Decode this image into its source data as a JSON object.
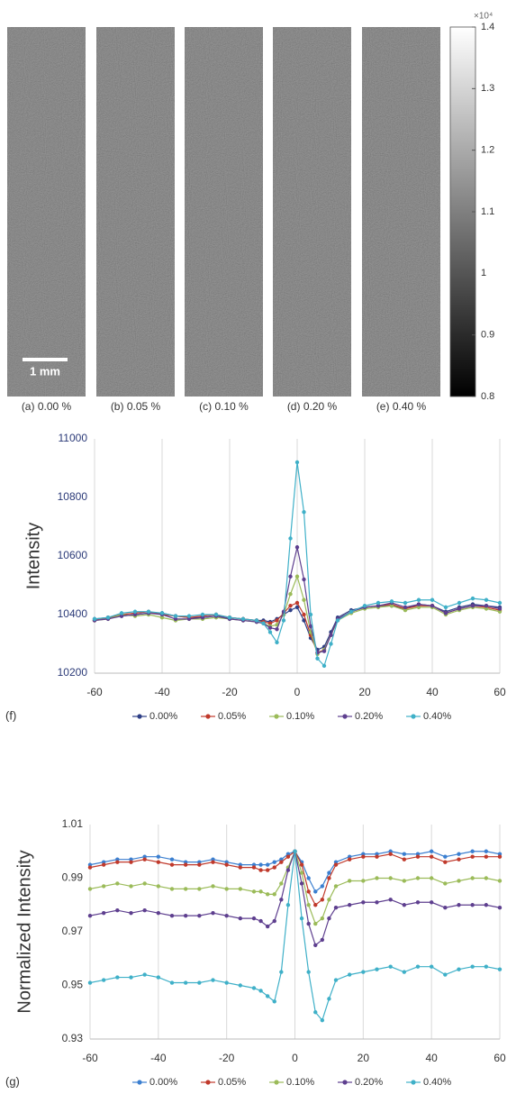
{
  "chart_data": [
    {
      "type": "image",
      "panels": [
        "(a) 0.00 %",
        "(b) 0.05 %",
        "(c) 0.10 %",
        "(d) 0.20 %",
        "(e) 0.40 %"
      ],
      "scale_bar": "1 mm",
      "colorbar_label": "×10⁴",
      "colormap": "gray",
      "clim": [
        0.8,
        1.4
      ],
      "cticks": [
        0.8,
        0.9,
        1,
        1.1,
        1.2,
        1.3,
        1.4
      ]
    },
    {
      "type": "line",
      "label": "(f)",
      "ylabel": "Intensity",
      "grid": "x",
      "x": [
        -60,
        -56,
        -52,
        -48,
        -44,
        -40,
        -36,
        -32,
        -28,
        -24,
        -20,
        -16,
        -12,
        -10,
        -8,
        -6,
        -4,
        -2,
        0,
        2,
        4,
        6,
        8,
        10,
        12,
        16,
        20,
        24,
        28,
        32,
        36,
        40,
        44,
        48,
        52,
        56,
        60
      ],
      "xlim": [
        -60,
        60
      ],
      "xticks": [
        -60,
        -40,
        -20,
        0,
        20,
        40,
        60
      ],
      "ylim": [
        10200,
        11000
      ],
      "yticks": [
        10200,
        10400,
        10600,
        10800,
        11000
      ],
      "series": [
        {
          "name": "0.00%",
          "color": "#2e3f86",
          "values": [
            10385,
            10390,
            10395,
            10400,
            10405,
            10405,
            10395,
            10390,
            10390,
            10395,
            10390,
            10385,
            10380,
            10380,
            10375,
            10385,
            10400,
            10415,
            10425,
            10380,
            10320,
            10280,
            10290,
            10340,
            10390,
            10415,
            10425,
            10430,
            10430,
            10420,
            10435,
            10430,
            10410,
            10425,
            10435,
            10430,
            10425
          ]
        },
        {
          "name": "0.05%",
          "color": "#c0392b",
          "values": [
            10380,
            10390,
            10400,
            10405,
            10410,
            10400,
            10395,
            10390,
            10395,
            10400,
            10390,
            10385,
            10380,
            10375,
            10370,
            10380,
            10405,
            10430,
            10440,
            10400,
            10330,
            10270,
            10280,
            10330,
            10385,
            10410,
            10425,
            10430,
            10435,
            10420,
            10430,
            10430,
            10405,
            10420,
            10430,
            10425,
            10415
          ]
        },
        {
          "name": "0.10%",
          "color": "#9bbb59",
          "values": [
            10380,
            10385,
            10400,
            10395,
            10400,
            10390,
            10380,
            10385,
            10385,
            10390,
            10385,
            10380,
            10375,
            10370,
            10360,
            10365,
            10400,
            10470,
            10530,
            10450,
            10340,
            10265,
            10280,
            10330,
            10380,
            10405,
            10420,
            10425,
            10430,
            10415,
            10425,
            10425,
            10400,
            10415,
            10425,
            10420,
            10410
          ]
        },
        {
          "name": "0.20%",
          "color": "#5e3f8f",
          "values": [
            10380,
            10385,
            10395,
            10400,
            10405,
            10400,
            10385,
            10385,
            10390,
            10395,
            10385,
            10380,
            10375,
            10370,
            10355,
            10350,
            10410,
            10530,
            10630,
            10520,
            10360,
            10270,
            10275,
            10330,
            10385,
            10410,
            10425,
            10430,
            10440,
            10425,
            10435,
            10430,
            10405,
            10420,
            10430,
            10430,
            10420
          ]
        },
        {
          "name": "0.40%",
          "color": "#3fb0c8",
          "values": [
            10385,
            10390,
            10405,
            10410,
            10410,
            10405,
            10395,
            10395,
            10400,
            10400,
            10390,
            10385,
            10380,
            10370,
            10340,
            10305,
            10380,
            10660,
            10920,
            10750,
            10400,
            10250,
            10225,
            10300,
            10380,
            10410,
            10430,
            10440,
            10445,
            10440,
            10450,
            10450,
            10425,
            10440,
            10455,
            10450,
            10440
          ]
        }
      ]
    },
    {
      "type": "line",
      "label": "(g)",
      "ylabel": "Normalized Intensity",
      "grid": "x",
      "x": [
        -60,
        -56,
        -52,
        -48,
        -44,
        -40,
        -36,
        -32,
        -28,
        -24,
        -20,
        -16,
        -12,
        -10,
        -8,
        -6,
        -4,
        -2,
        0,
        2,
        4,
        6,
        8,
        10,
        12,
        16,
        20,
        24,
        28,
        32,
        36,
        40,
        44,
        48,
        52,
        56,
        60
      ],
      "xlim": [
        -60,
        60
      ],
      "xticks": [
        -60,
        -40,
        -20,
        0,
        20,
        40,
        60
      ],
      "ylim": [
        0.93,
        1.01
      ],
      "yticks": [
        0.93,
        0.95,
        0.97,
        0.99,
        1.01
      ],
      "series": [
        {
          "name": "0.00%",
          "color": "#3b7fd0",
          "values": [
            0.995,
            0.996,
            0.997,
            0.997,
            0.998,
            0.998,
            0.997,
            0.996,
            0.996,
            0.997,
            0.996,
            0.995,
            0.995,
            0.995,
            0.995,
            0.996,
            0.997,
            0.999,
            1.0,
            0.996,
            0.99,
            0.985,
            0.987,
            0.992,
            0.996,
            0.998,
            0.999,
            0.999,
            1.0,
            0.999,
            0.999,
            1.0,
            0.998,
            0.999,
            1.0,
            1.0,
            0.999
          ]
        },
        {
          "name": "0.05%",
          "color": "#c0392b",
          "values": [
            0.994,
            0.995,
            0.996,
            0.996,
            0.997,
            0.996,
            0.995,
            0.995,
            0.995,
            0.996,
            0.995,
            0.994,
            0.994,
            0.993,
            0.993,
            0.994,
            0.996,
            0.998,
            1.0,
            0.995,
            0.985,
            0.98,
            0.982,
            0.99,
            0.995,
            0.997,
            0.998,
            0.998,
            0.999,
            0.997,
            0.998,
            0.998,
            0.996,
            0.997,
            0.998,
            0.998,
            0.998
          ]
        },
        {
          "name": "0.10%",
          "color": "#9bbb59",
          "values": [
            0.986,
            0.987,
            0.988,
            0.987,
            0.988,
            0.987,
            0.986,
            0.986,
            0.986,
            0.987,
            0.986,
            0.986,
            0.985,
            0.985,
            0.984,
            0.984,
            0.988,
            0.994,
            1.0,
            0.992,
            0.98,
            0.973,
            0.975,
            0.982,
            0.987,
            0.989,
            0.989,
            0.99,
            0.99,
            0.989,
            0.99,
            0.99,
            0.988,
            0.989,
            0.99,
            0.99,
            0.989
          ]
        },
        {
          "name": "0.20%",
          "color": "#5e3f8f",
          "values": [
            0.976,
            0.977,
            0.978,
            0.977,
            0.978,
            0.977,
            0.976,
            0.976,
            0.976,
            0.977,
            0.976,
            0.975,
            0.975,
            0.974,
            0.972,
            0.974,
            0.982,
            0.993,
            1.0,
            0.988,
            0.973,
            0.965,
            0.967,
            0.975,
            0.979,
            0.98,
            0.981,
            0.981,
            0.982,
            0.98,
            0.981,
            0.981,
            0.979,
            0.98,
            0.98,
            0.98,
            0.979
          ]
        },
        {
          "name": "0.40%",
          "color": "#3fb0c8",
          "values": [
            0.951,
            0.952,
            0.953,
            0.953,
            0.954,
            0.953,
            0.951,
            0.951,
            0.951,
            0.952,
            0.951,
            0.95,
            0.949,
            0.948,
            0.946,
            0.944,
            0.955,
            0.98,
            1.0,
            0.975,
            0.955,
            0.94,
            0.937,
            0.945,
            0.952,
            0.954,
            0.955,
            0.956,
            0.957,
            0.955,
            0.957,
            0.957,
            0.954,
            0.956,
            0.957,
            0.957,
            0.956
          ]
        }
      ]
    }
  ]
}
